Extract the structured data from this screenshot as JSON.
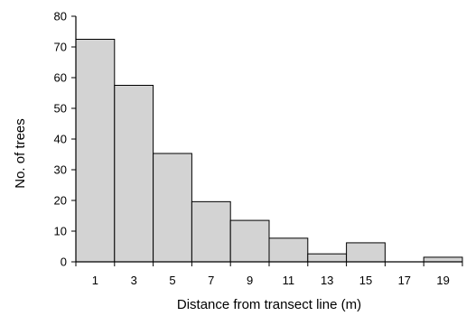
{
  "chart_data": {
    "type": "bar",
    "categories": [
      "1",
      "3",
      "5",
      "7",
      "9",
      "11",
      "13",
      "15",
      "17",
      "19"
    ],
    "values": [
      72.5,
      57.5,
      35.3,
      19.6,
      13.5,
      7.7,
      2.6,
      6.2,
      0,
      1.5
    ],
    "xlabel": "Distance from transect line (m)",
    "ylabel": "No. of trees",
    "ylim": [
      0,
      80
    ],
    "yticks": [
      "0",
      "10",
      "20",
      "30",
      "40",
      "50",
      "60",
      "70",
      "80"
    ],
    "bar_color": "#d3d3d3",
    "bar_edge_color": "#000000",
    "grid": false,
    "legend": "none"
  }
}
